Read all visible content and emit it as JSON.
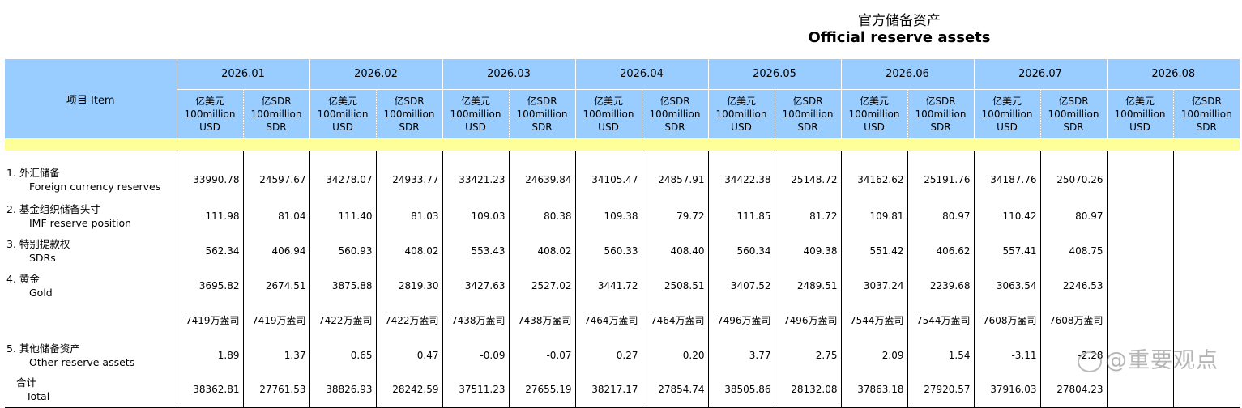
{
  "title": {
    "zh": "官方储备资产",
    "en": "Official reserve assets"
  },
  "header": {
    "item": "项目 Item",
    "months": [
      "2026.01",
      "2026.02",
      "2026.03",
      "2026.04",
      "2026.05",
      "2026.06",
      "2026.07",
      "2026.08"
    ],
    "usd": {
      "zh": "亿美元",
      "en1": "100million",
      "en2": "USD"
    },
    "sdr": {
      "zh": "亿SDR",
      "en1": "100million",
      "en2": "SDR"
    }
  },
  "rows": [
    {
      "zh": "1.  外汇储备",
      "en": "Foreign currency reserves",
      "values": [
        "33990.78",
        "24597.67",
        "34278.07",
        "24933.77",
        "33421.23",
        "24639.84",
        "34105.47",
        "24857.91",
        "34422.38",
        "25148.72",
        "34162.62",
        "25191.76",
        "34187.76",
        "25070.26",
        "",
        ""
      ]
    },
    {
      "zh": "2.  基金组织储备头寸",
      "en": "IMF reserve position",
      "values": [
        "111.98",
        "81.04",
        "111.40",
        "81.03",
        "109.03",
        "80.38",
        "109.38",
        "79.72",
        "111.85",
        "81.72",
        "109.81",
        "80.97",
        "110.42",
        "80.97",
        "",
        ""
      ]
    },
    {
      "zh": "3.  特别提款权",
      "en": "SDRs",
      "values": [
        "562.34",
        "406.94",
        "560.93",
        "408.02",
        "553.43",
        "408.02",
        "560.33",
        "408.40",
        "560.34",
        "409.38",
        "551.42",
        "406.62",
        "557.41",
        "408.75",
        "",
        ""
      ]
    },
    {
      "zh": "4.  黄金",
      "en": "Gold",
      "values": [
        "3695.82",
        "2674.51",
        "3875.88",
        "2819.30",
        "3427.63",
        "2527.02",
        "3441.72",
        "2508.51",
        "3407.52",
        "2489.51",
        "3037.24",
        "2239.68",
        "3063.54",
        "2246.53",
        "",
        ""
      ]
    },
    {
      "zh": "",
      "en": "",
      "values": [
        "7419万盎司",
        "7419万盎司",
        "7422万盎司",
        "7422万盎司",
        "7438万盎司",
        "7438万盎司",
        "7464万盎司",
        "7464万盎司",
        "7496万盎司",
        "7496万盎司",
        "7544万盎司",
        "7544万盎司",
        "7608万盎司",
        "7608万盎司",
        "",
        ""
      ]
    },
    {
      "zh": "5.  其他储备资产",
      "en": "Other reserve assets",
      "values": [
        "1.89",
        "1.37",
        "0.65",
        "0.47",
        "-0.09",
        "-0.07",
        "0.27",
        "0.20",
        "3.77",
        "2.75",
        "2.09",
        "1.54",
        "-3.11",
        "-2.28",
        "",
        ""
      ]
    },
    {
      "zh": "合计",
      "en": "Total",
      "values": [
        "38362.81",
        "27761.53",
        "38826.93",
        "28242.59",
        "37511.23",
        "27655.19",
        "38217.17",
        "27854.74",
        "38505.86",
        "28132.08",
        "37863.18",
        "27920.57",
        "37916.03",
        "27804.23",
        "",
        ""
      ]
    }
  ],
  "watermark": "@重要观点",
  "colors": {
    "header_bg": "#99ccff",
    "band_bg": "#ffff99"
  }
}
